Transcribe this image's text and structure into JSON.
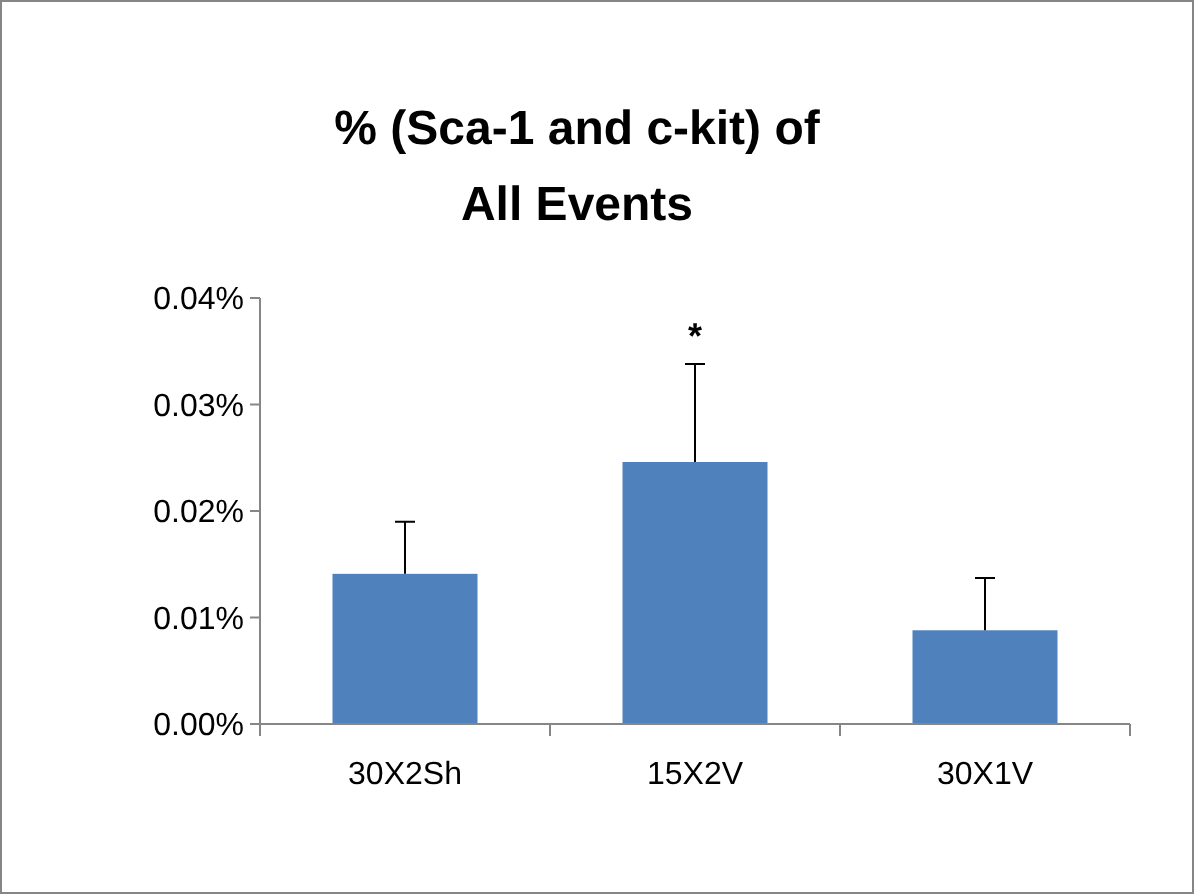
{
  "chart_data": {
    "type": "bar",
    "title": "% (Sca-1 and c-kit) of All Events",
    "categories": [
      "30X2Sh",
      "15X2V",
      "30X1V"
    ],
    "values": [
      0.0141,
      0.0246,
      0.0088
    ],
    "errors": [
      [
        0.0141,
        0.019
      ],
      [
        0.0246,
        0.0338
      ],
      [
        0.0088,
        0.0137
      ]
    ],
    "color": "#4f81bd",
    "ylim": [
      0,
      0.04
    ],
    "yticks": [
      {
        "value": 0,
        "label": "0.00%"
      },
      {
        "value": 0.01,
        "label": "0.01%"
      },
      {
        "value": 0.02,
        "label": "0.02%"
      },
      {
        "value": 0.03,
        "label": "0.03%"
      },
      {
        "value": 0.04,
        "label": "0.04%"
      }
    ],
    "annotations": [
      {
        "text": "*",
        "x": "15X2V",
        "y": 0.0338
      }
    ],
    "grid": false
  }
}
